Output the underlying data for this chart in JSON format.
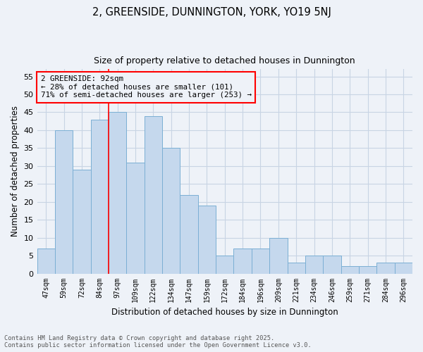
{
  "title": "2, GREENSIDE, DUNNINGTON, YORK, YO19 5NJ",
  "subtitle": "Size of property relative to detached houses in Dunnington",
  "xlabel": "Distribution of detached houses by size in Dunnington",
  "ylabel": "Number of detached properties",
  "footer_line1": "Contains HM Land Registry data © Crown copyright and database right 2025.",
  "footer_line2": "Contains public sector information licensed under the Open Government Licence v3.0.",
  "categories": [
    "47sqm",
    "59sqm",
    "72sqm",
    "84sqm",
    "97sqm",
    "109sqm",
    "122sqm",
    "134sqm",
    "147sqm",
    "159sqm",
    "172sqm",
    "184sqm",
    "196sqm",
    "209sqm",
    "221sqm",
    "234sqm",
    "246sqm",
    "259sqm",
    "271sqm",
    "284sqm",
    "296sqm"
  ],
  "values": [
    7,
    40,
    29,
    43,
    45,
    31,
    44,
    35,
    22,
    19,
    5,
    7,
    7,
    10,
    3,
    5,
    5,
    2,
    2,
    3,
    3
  ],
  "bar_color": "#c5d8ed",
  "bar_edge_color": "#7bafd4",
  "grid_color": "#c8d4e4",
  "background_color": "#eef2f8",
  "annotation_text": "2 GREENSIDE: 92sqm\n← 28% of detached houses are smaller (101)\n71% of semi-detached houses are larger (253) →",
  "vline_x_index": 3,
  "vline_color": "red",
  "annotation_box_color": "red",
  "ylim": [
    0,
    57
  ],
  "yticks": [
    0,
    5,
    10,
    15,
    20,
    25,
    30,
    35,
    40,
    45,
    50,
    55
  ]
}
